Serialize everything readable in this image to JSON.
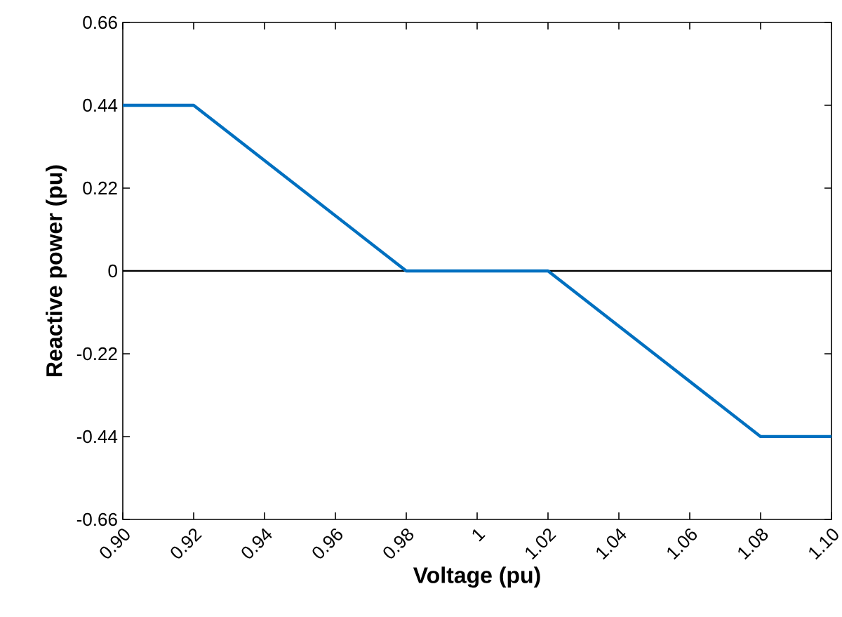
{
  "chart_data": {
    "type": "line",
    "xlabel": "Voltage (pu)",
    "ylabel": "Reactive power (pu)",
    "x": [
      0.9,
      0.92,
      0.98,
      1.02,
      1.08,
      1.1
    ],
    "series": [
      {
        "color": "#0070c0",
        "values": [
          0.44,
          0.44,
          0,
          0,
          -0.44,
          -0.44
        ]
      }
    ],
    "xlim": [
      0.9,
      1.1
    ],
    "ylim": [
      -0.66,
      0.66
    ],
    "xticks": [
      {
        "value": 0.9,
        "label": "0.90"
      },
      0.92,
      0.94,
      0.96,
      0.98,
      1,
      1.02,
      1.04,
      1.06,
      1.08,
      {
        "value": 1.1,
        "label": "1.10"
      }
    ],
    "yticks": [
      -0.66,
      -0.44,
      -0.22,
      0,
      0.22,
      0.44,
      0.66
    ],
    "ref_lines": [
      {
        "axis": "y",
        "value": 0,
        "color": "#000000"
      }
    ]
  }
}
